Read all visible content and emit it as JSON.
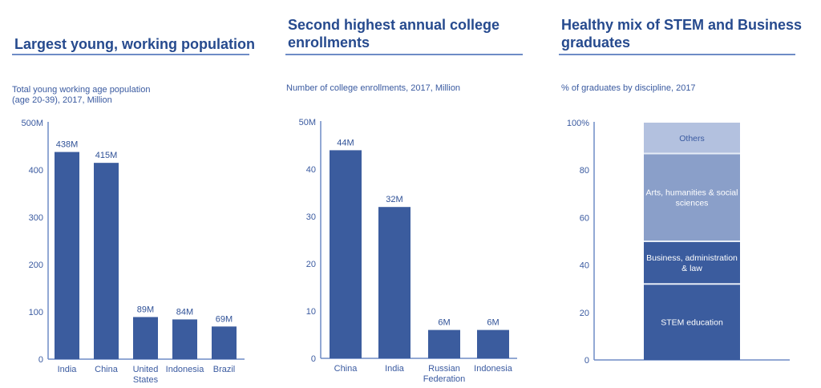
{
  "panels": [
    {
      "title": "Largest young, working population",
      "subtitle_lines": [
        "Total young working age population",
        "(age 20-39), 2017, Million"
      ]
    },
    {
      "title_lines": [
        "Second highest annual college",
        "enrollments"
      ],
      "subtitle_lines": [
        "Number of college enrollments, 2017, Million"
      ]
    },
    {
      "title_lines": [
        "Healthy mix of STEM and Business",
        "graduates"
      ],
      "subtitle_lines": [
        "% of graduates by discipline, 2017"
      ]
    }
  ],
  "colors": {
    "bar": "#3b5c9e",
    "axis": "#6e8cc6",
    "seg_stem": "#3b5c9e",
    "seg_business": "#3b5c9e",
    "seg_arts": "#8a9fc9",
    "seg_others": "#b3c1df"
  },
  "chart_data": [
    {
      "type": "bar",
      "title": "Largest young, working population",
      "subtitle": "Total young working age population (age 20-39), 2017, Million",
      "categories": [
        [
          "India"
        ],
        [
          "China"
        ],
        [
          "United",
          "States"
        ],
        [
          "Indonesia"
        ],
        [
          "Brazil"
        ]
      ],
      "values": [
        438,
        415,
        89,
        84,
        69
      ],
      "data_labels": [
        "438M",
        "415M",
        "89M",
        "84M",
        "69M"
      ],
      "yticks": [
        0,
        100,
        200,
        300,
        400,
        500
      ],
      "ytick_labels": [
        "0",
        "100",
        "200",
        "300",
        "400",
        "500M"
      ],
      "ylim": [
        0,
        500
      ],
      "xlabel": "",
      "ylabel": "",
      "grid": false
    },
    {
      "type": "bar",
      "title": "Second highest annual college enrollments",
      "subtitle": "Number of college enrollments, 2017, Million",
      "categories": [
        [
          "China"
        ],
        [
          "India"
        ],
        [
          "Russian",
          "Federation"
        ],
        [
          "Indonesia"
        ]
      ],
      "values": [
        44,
        32,
        6,
        6
      ],
      "data_labels": [
        "44M",
        "32M",
        "6M",
        "6M"
      ],
      "yticks": [
        0,
        10,
        20,
        30,
        40,
        50
      ],
      "ytick_labels": [
        "0",
        "10",
        "20",
        "30",
        "40",
        "50M"
      ],
      "ylim": [
        0,
        50
      ],
      "xlabel": "",
      "ylabel": "",
      "grid": false
    },
    {
      "type": "bar",
      "stacked": true,
      "title": "Healthy mix of STEM and Business graduates",
      "subtitle": "% of graduates by discipline, 2017",
      "series": [
        {
          "name": "STEM education",
          "label_lines": [
            "STEM education"
          ],
          "value": 32,
          "color_key": "seg_stem",
          "text_color": "#ffffff"
        },
        {
          "name": "Business, administration & law",
          "label_lines": [
            "Business, administration",
            "& law"
          ],
          "value": 18,
          "color_key": "seg_business",
          "text_color": "#ffffff"
        },
        {
          "name": "Arts, humanities & social sciences",
          "label_lines": [
            "Arts, humanities & social",
            "sciences"
          ],
          "value": 37,
          "color_key": "seg_arts",
          "text_color": "#ffffff"
        },
        {
          "name": "Others",
          "label_lines": [
            "Others"
          ],
          "value": 13,
          "color_key": "seg_others",
          "text_color": "#3a5aa0"
        }
      ],
      "yticks": [
        0,
        20,
        40,
        60,
        80,
        100
      ],
      "ytick_labels": [
        "0",
        "20",
        "40",
        "60",
        "80",
        "100%"
      ],
      "ylim": [
        0,
        100
      ],
      "xlabel": "",
      "ylabel": "",
      "grid": false
    }
  ]
}
